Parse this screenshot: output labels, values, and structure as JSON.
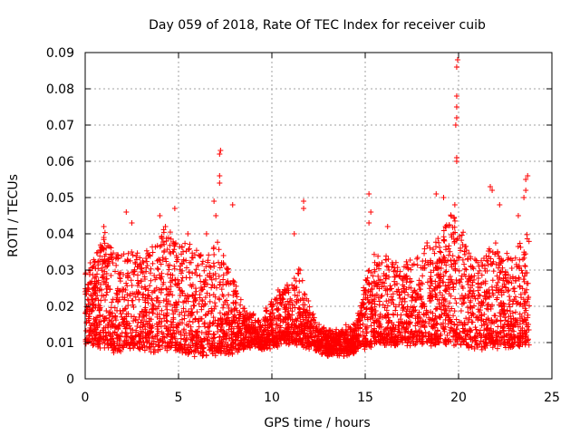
{
  "chart_data": {
    "type": "scatter",
    "title": "Day 059 of 2018, Rate Of TEC Index for receiver cuib",
    "xlabel": "GPS time / hours",
    "ylabel": "ROTI / TECUs",
    "xlim": [
      0,
      25
    ],
    "ylim": [
      0,
      0.09
    ],
    "xticks": [
      "0",
      "5",
      "10",
      "15",
      "20",
      "25"
    ],
    "yticks": [
      "0",
      "0.01",
      "0.02",
      "0.03",
      "0.04",
      "0.05",
      "0.06",
      "0.07",
      "0.08",
      "0.09"
    ],
    "grid": true,
    "marker": "plus",
    "color": "#ff0000",
    "series": [
      {
        "name": "ROTI",
        "envelope_hours": [
          0,
          0.5,
          1,
          1.5,
          2,
          2.5,
          3,
          3.5,
          4,
          4.5,
          5,
          5.5,
          6,
          6.5,
          7,
          7.5,
          8,
          8.5,
          9,
          9.5,
          10,
          10.5,
          11,
          11.5,
          12,
          12.5,
          13,
          13.5,
          14,
          14.5,
          15,
          15.5,
          16,
          16.5,
          17,
          17.5,
          18,
          18.5,
          19,
          19.5,
          20,
          20.5,
          21,
          21.5,
          22,
          22.5,
          23,
          23.5,
          23.8
        ],
        "typical_min": [
          0.01,
          0.01,
          0.009,
          0.008,
          0.008,
          0.009,
          0.009,
          0.008,
          0.008,
          0.009,
          0.008,
          0.007,
          0.007,
          0.007,
          0.007,
          0.007,
          0.008,
          0.009,
          0.009,
          0.009,
          0.009,
          0.01,
          0.01,
          0.01,
          0.009,
          0.008,
          0.007,
          0.007,
          0.007,
          0.008,
          0.009,
          0.01,
          0.01,
          0.01,
          0.01,
          0.01,
          0.01,
          0.01,
          0.01,
          0.01,
          0.01,
          0.009,
          0.009,
          0.009,
          0.009,
          0.009,
          0.009,
          0.01,
          0.01
        ],
        "typical_max": [
          0.03,
          0.033,
          0.04,
          0.036,
          0.034,
          0.036,
          0.035,
          0.036,
          0.04,
          0.041,
          0.038,
          0.037,
          0.035,
          0.034,
          0.038,
          0.032,
          0.026,
          0.02,
          0.018,
          0.017,
          0.022,
          0.025,
          0.027,
          0.03,
          0.02,
          0.015,
          0.013,
          0.013,
          0.014,
          0.015,
          0.028,
          0.035,
          0.034,
          0.033,
          0.032,
          0.032,
          0.036,
          0.038,
          0.04,
          0.045,
          0.044,
          0.035,
          0.034,
          0.035,
          0.038,
          0.034,
          0.034,
          0.04,
          0.04
        ],
        "peaks": [
          {
            "x": 0.2,
            "y": 0.03
          },
          {
            "x": 1.0,
            "y": 0.039
          },
          {
            "x": 1.0,
            "y": 0.042
          },
          {
            "x": 2.2,
            "y": 0.046
          },
          {
            "x": 2.5,
            "y": 0.043
          },
          {
            "x": 4.0,
            "y": 0.045
          },
          {
            "x": 4.3,
            "y": 0.042
          },
          {
            "x": 4.8,
            "y": 0.047
          },
          {
            "x": 5.5,
            "y": 0.04
          },
          {
            "x": 6.5,
            "y": 0.04
          },
          {
            "x": 6.9,
            "y": 0.049
          },
          {
            "x": 7.0,
            "y": 0.045
          },
          {
            "x": 7.2,
            "y": 0.056
          },
          {
            "x": 7.2,
            "y": 0.054
          },
          {
            "x": 7.2,
            "y": 0.062
          },
          {
            "x": 7.25,
            "y": 0.063
          },
          {
            "x": 7.9,
            "y": 0.048
          },
          {
            "x": 11.7,
            "y": 0.049
          },
          {
            "x": 11.7,
            "y": 0.047
          },
          {
            "x": 11.2,
            "y": 0.04
          },
          {
            "x": 15.2,
            "y": 0.051
          },
          {
            "x": 15.3,
            "y": 0.046
          },
          {
            "x": 15.2,
            "y": 0.043
          },
          {
            "x": 16.2,
            "y": 0.042
          },
          {
            "x": 18.8,
            "y": 0.051
          },
          {
            "x": 19.2,
            "y": 0.05
          },
          {
            "x": 19.8,
            "y": 0.048
          },
          {
            "x": 19.9,
            "y": 0.06
          },
          {
            "x": 19.9,
            "y": 0.061
          },
          {
            "x": 19.85,
            "y": 0.07
          },
          {
            "x": 19.9,
            "y": 0.072
          },
          {
            "x": 19.9,
            "y": 0.075
          },
          {
            "x": 19.9,
            "y": 0.078
          },
          {
            "x": 19.9,
            "y": 0.086
          },
          {
            "x": 19.95,
            "y": 0.088
          },
          {
            "x": 21.7,
            "y": 0.053
          },
          {
            "x": 21.8,
            "y": 0.052
          },
          {
            "x": 22.2,
            "y": 0.048
          },
          {
            "x": 23.2,
            "y": 0.045
          },
          {
            "x": 23.6,
            "y": 0.055
          },
          {
            "x": 23.6,
            "y": 0.052
          },
          {
            "x": 23.7,
            "y": 0.056
          },
          {
            "x": 23.5,
            "y": 0.05
          }
        ]
      }
    ]
  }
}
